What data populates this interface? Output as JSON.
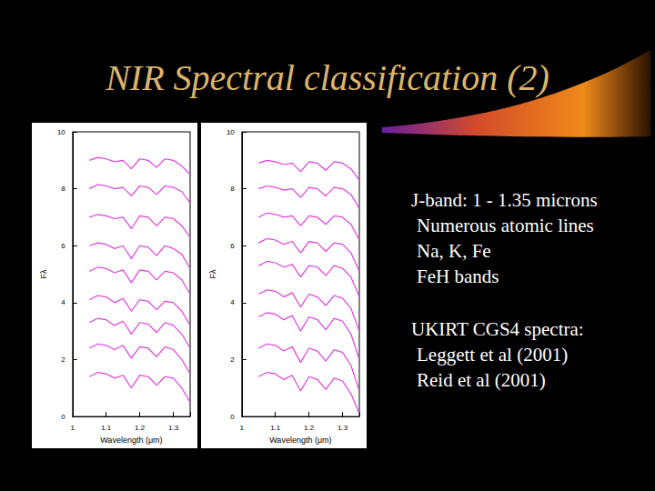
{
  "title": "NIR Spectral classification (2)",
  "text_blocks": [
    {
      "heading": "J-band: 1 - 1.35 microns",
      "lines": [
        "Numerous atomic lines",
        "Na, K, Fe",
        "FeH bands"
      ]
    },
    {
      "heading": "UKIRT CGS4 spectra:",
      "lines": [
        "Leggett et al (2001)",
        "Reid et al (2001)"
      ]
    }
  ],
  "chart_data": [
    {
      "type": "line",
      "x_label": "Wavelength (μm)",
      "y_label": "Fλ",
      "color": "#e040e0",
      "grid": false,
      "xlim": [
        1,
        1.35
      ],
      "xticks": [
        1,
        1.1,
        1.2,
        1.3
      ],
      "ylim": [
        0,
        10
      ],
      "yticks": [
        0,
        2,
        4,
        6,
        8,
        10
      ],
      "x": [
        1.05,
        1.075,
        1.1,
        1.125,
        1.15,
        1.175,
        1.2,
        1.225,
        1.25,
        1.275,
        1.3,
        1.325,
        1.35
      ],
      "series": [
        {
          "values": [
            9.0,
            9.1,
            9.05,
            8.95,
            9.0,
            8.7,
            9.05,
            9.0,
            8.75,
            9.05,
            9.0,
            8.8,
            8.5
          ]
        },
        {
          "values": [
            8.0,
            8.15,
            8.1,
            8.0,
            8.05,
            7.75,
            8.1,
            8.05,
            7.8,
            8.1,
            8.05,
            7.9,
            7.5
          ]
        },
        {
          "values": [
            7.0,
            7.1,
            7.05,
            6.95,
            7.0,
            6.6,
            7.05,
            7.0,
            6.7,
            7.0,
            6.95,
            6.7,
            6.3
          ]
        },
        {
          "values": [
            6.0,
            6.1,
            6.05,
            5.9,
            6.0,
            5.55,
            6.0,
            5.95,
            5.65,
            6.0,
            5.9,
            5.7,
            5.2
          ]
        },
        {
          "values": [
            5.1,
            5.25,
            5.2,
            5.05,
            5.15,
            4.7,
            5.15,
            5.1,
            4.8,
            5.1,
            5.05,
            4.8,
            4.3
          ]
        },
        {
          "values": [
            4.1,
            4.25,
            4.2,
            4.0,
            4.15,
            3.7,
            4.1,
            4.05,
            3.75,
            4.05,
            4.0,
            3.7,
            3.2
          ]
        },
        {
          "values": [
            3.3,
            3.45,
            3.4,
            3.2,
            3.35,
            2.9,
            3.3,
            3.25,
            2.95,
            3.3,
            3.2,
            2.9,
            2.4
          ]
        },
        {
          "values": [
            2.4,
            2.55,
            2.5,
            2.35,
            2.5,
            2.05,
            2.45,
            2.4,
            2.1,
            2.45,
            2.35,
            2.0,
            1.5
          ]
        },
        {
          "values": [
            1.4,
            1.55,
            1.5,
            1.35,
            1.45,
            1.0,
            1.45,
            1.4,
            1.1,
            1.4,
            1.35,
            1.0,
            0.5
          ]
        }
      ]
    },
    {
      "type": "line",
      "x_label": "Wavelength (μm)",
      "y_label": "Fλ",
      "color": "#e040e0",
      "grid": false,
      "xlim": [
        1,
        1.35
      ],
      "xticks": [
        1,
        1.1,
        1.2,
        1.3
      ],
      "ylim": [
        0,
        10
      ],
      "yticks": [
        0,
        2,
        4,
        6,
        8,
        10
      ],
      "x": [
        1.05,
        1.075,
        1.1,
        1.125,
        1.15,
        1.175,
        1.2,
        1.225,
        1.25,
        1.275,
        1.3,
        1.325,
        1.35
      ],
      "series": [
        {
          "values": [
            8.9,
            9.0,
            8.95,
            8.85,
            8.9,
            8.6,
            8.95,
            8.9,
            8.65,
            8.95,
            8.9,
            8.7,
            8.3
          ]
        },
        {
          "values": [
            8.0,
            8.1,
            8.05,
            7.95,
            8.0,
            7.7,
            8.05,
            8.0,
            7.75,
            8.05,
            8.0,
            7.8,
            7.3
          ]
        },
        {
          "values": [
            7.0,
            7.15,
            7.1,
            7.0,
            7.05,
            6.7,
            7.05,
            7.0,
            6.75,
            7.05,
            7.0,
            6.75,
            6.2
          ]
        },
        {
          "values": [
            6.1,
            6.25,
            6.2,
            6.05,
            6.15,
            5.75,
            6.15,
            6.1,
            5.8,
            6.1,
            6.05,
            5.75,
            5.1
          ]
        },
        {
          "values": [
            5.3,
            5.45,
            5.4,
            5.25,
            5.35,
            4.9,
            5.3,
            5.25,
            4.95,
            5.3,
            5.2,
            4.9,
            4.2
          ]
        },
        {
          "values": [
            4.3,
            4.45,
            4.4,
            4.2,
            4.35,
            3.85,
            4.3,
            4.2,
            3.9,
            4.25,
            4.15,
            3.8,
            3.0
          ]
        },
        {
          "values": [
            3.5,
            3.65,
            3.6,
            3.4,
            3.55,
            3.0,
            3.5,
            3.4,
            3.05,
            3.45,
            3.35,
            2.9,
            2.0
          ]
        },
        {
          "values": [
            2.4,
            2.55,
            2.5,
            2.3,
            2.45,
            1.9,
            2.4,
            2.3,
            1.95,
            2.35,
            2.25,
            1.8,
            0.9
          ]
        },
        {
          "values": [
            1.4,
            1.55,
            1.5,
            1.3,
            1.45,
            0.9,
            1.4,
            1.3,
            0.95,
            1.35,
            1.25,
            0.8,
            0.1
          ]
        }
      ]
    }
  ]
}
